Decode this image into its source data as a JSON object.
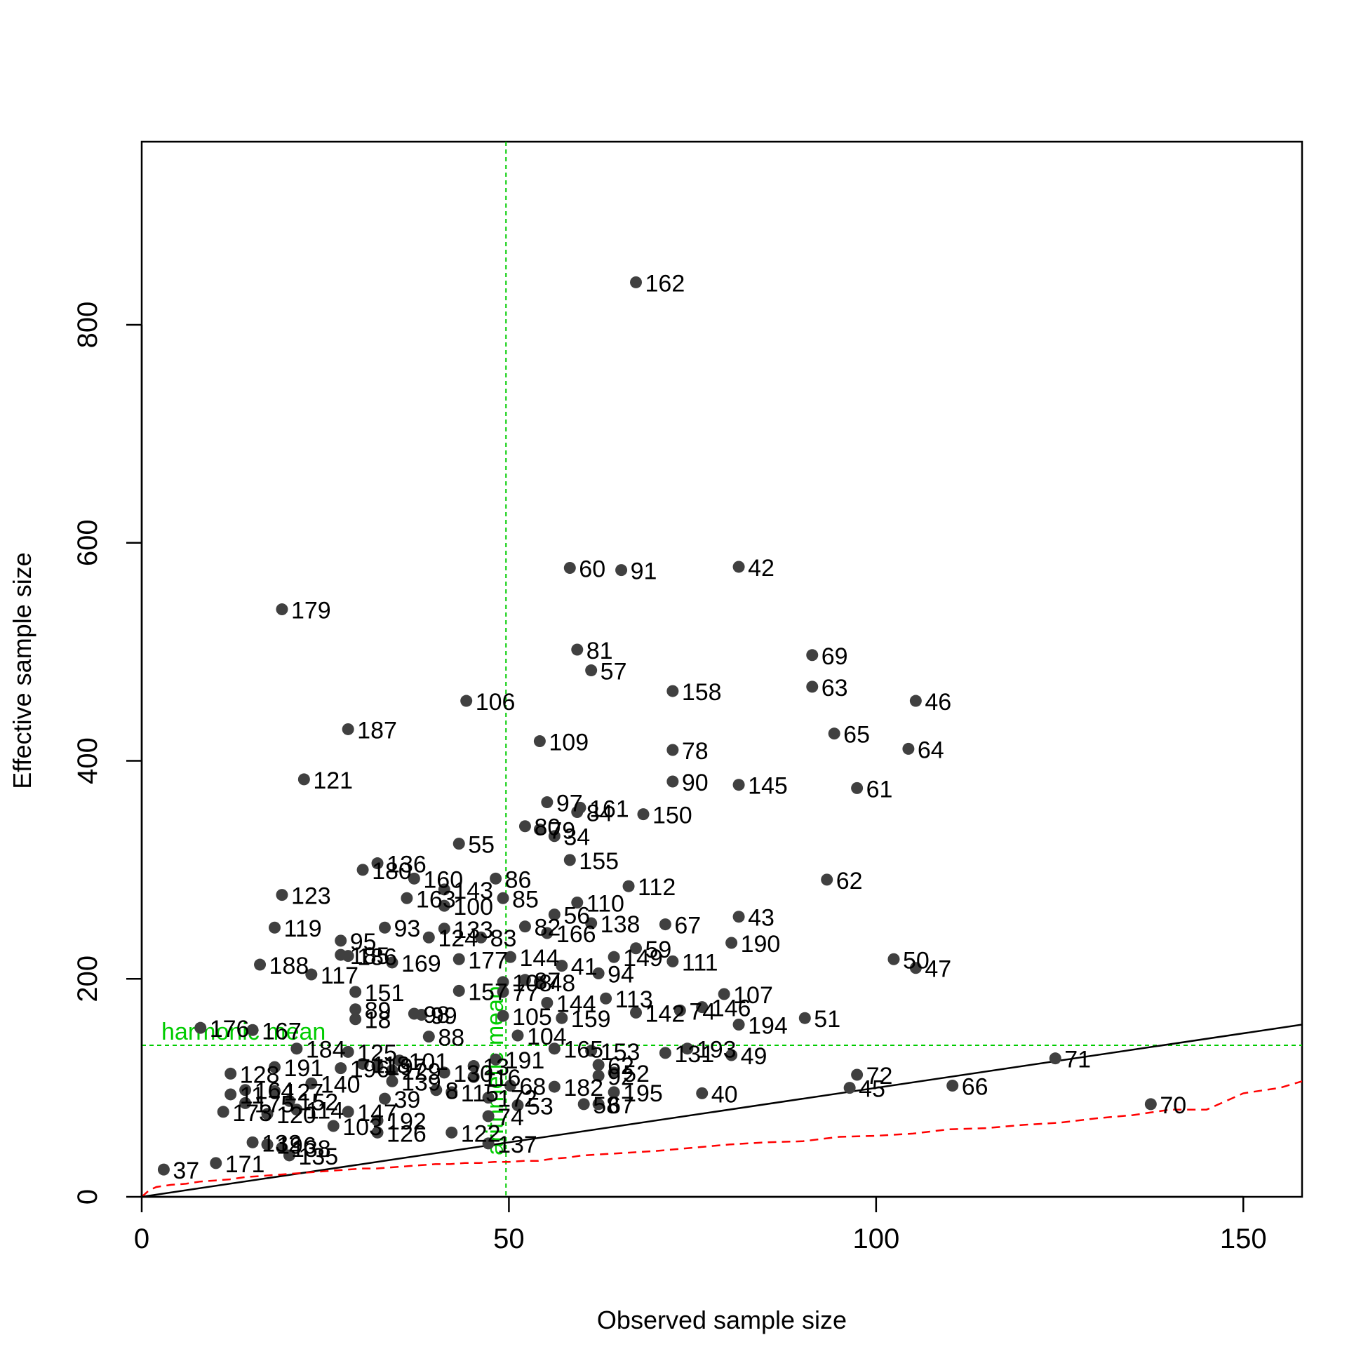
{
  "chart_data": {
    "type": "scatter",
    "title": "",
    "xlabel": "Observed sample size",
    "ylabel": "Effective sample size",
    "xlim": [
      0,
      158
    ],
    "ylim": [
      0,
      968
    ],
    "xticks": [
      "0",
      "50",
      "100",
      "150"
    ],
    "yticks": [
      "0",
      "200",
      "400",
      "600",
      "800"
    ],
    "point_color": "#404040",
    "grid": false,
    "reference_lines": {
      "harmonic_mean": {
        "label": "harmonic mean",
        "value": 139,
        "orientation": "horizontal",
        "color": "#00cc00"
      },
      "arithmetic_mean": {
        "label": "arithmetic mean",
        "value": 49.6,
        "orientation": "vertical",
        "color": "#00cc00"
      }
    },
    "identity_line": {
      "x": [
        0,
        158
      ],
      "y": [
        0,
        158
      ],
      "color": "#000000"
    },
    "lower_curve": {
      "color": "#ff0000",
      "x": [
        0,
        1,
        2,
        4,
        6,
        8,
        10,
        12,
        14,
        16,
        18,
        20,
        22,
        24,
        26,
        28,
        30,
        32,
        34,
        36,
        38,
        40,
        42,
        44,
        46,
        48,
        50,
        52,
        54,
        56,
        58,
        60,
        65,
        70,
        75,
        80,
        85,
        90,
        95,
        100,
        105,
        110,
        115,
        120,
        125,
        130,
        135,
        140,
        145,
        150,
        155,
        158
      ],
      "y": [
        0,
        6,
        9,
        11,
        12,
        14,
        15,
        16,
        18,
        19,
        20,
        21,
        22,
        23,
        24,
        25,
        26,
        26,
        27,
        28,
        29,
        30,
        30,
        31,
        31,
        32,
        32,
        33,
        33,
        35,
        36,
        38,
        40,
        42,
        45,
        48,
        50,
        51,
        55,
        56,
        58,
        62,
        63,
        66,
        68,
        72,
        75,
        80,
        80,
        95,
        100,
        106
      ]
    },
    "points": [
      {
        "id": "162",
        "x": 67.3,
        "y": 839
      },
      {
        "id": "60",
        "x": 58.3,
        "y": 577
      },
      {
        "id": "91",
        "x": 65.3,
        "y": 575
      },
      {
        "id": "42",
        "x": 81.3,
        "y": 578
      },
      {
        "id": "179",
        "x": 19.1,
        "y": 539
      },
      {
        "id": "81",
        "x": 59.3,
        "y": 502
      },
      {
        "id": "57",
        "x": 61.2,
        "y": 483
      },
      {
        "id": "69",
        "x": 91.3,
        "y": 497
      },
      {
        "id": "63",
        "x": 91.3,
        "y": 468
      },
      {
        "id": "106",
        "x": 44.2,
        "y": 455
      },
      {
        "id": "158",
        "x": 72.3,
        "y": 464
      },
      {
        "id": "46",
        "x": 105.4,
        "y": 455
      },
      {
        "id": "187",
        "x": 28.1,
        "y": 429
      },
      {
        "id": "109",
        "x": 54.2,
        "y": 418
      },
      {
        "id": "78",
        "x": 72.3,
        "y": 410
      },
      {
        "id": "65",
        "x": 94.3,
        "y": 425
      },
      {
        "id": "64",
        "x": 104.4,
        "y": 411
      },
      {
        "id": "121",
        "x": 22.1,
        "y": 383
      },
      {
        "id": "90",
        "x": 72.3,
        "y": 381
      },
      {
        "id": "145",
        "x": 81.3,
        "y": 378
      },
      {
        "id": "61",
        "x": 97.4,
        "y": 375
      },
      {
        "id": "97",
        "x": 55.2,
        "y": 362
      },
      {
        "id": "161",
        "x": 59.7,
        "y": 357
      },
      {
        "id": "84",
        "x": 59.3,
        "y": 353
      },
      {
        "id": "150",
        "x": 68.3,
        "y": 351
      },
      {
        "id": "80",
        "x": 52.2,
        "y": 340
      },
      {
        "id": "79",
        "x": 54.2,
        "y": 337
      },
      {
        "id": "34",
        "x": 56.2,
        "y": 331
      },
      {
        "id": "55",
        "x": 43.2,
        "y": 324
      },
      {
        "id": "155",
        "x": 58.3,
        "y": 309
      },
      {
        "id": "136",
        "x": 32.1,
        "y": 306
      },
      {
        "id": "180",
        "x": 30.1,
        "y": 300
      },
      {
        "id": "160",
        "x": 37.1,
        "y": 292
      },
      {
        "id": "86",
        "x": 48.2,
        "y": 292
      },
      {
        "id": "62",
        "x": 93.3,
        "y": 291
      },
      {
        "id": "112",
        "x": 66.3,
        "y": 285
      },
      {
        "id": "143",
        "x": 41.2,
        "y": 282
      },
      {
        "id": "123",
        "x": 19.1,
        "y": 277
      },
      {
        "id": "163",
        "x": 36.1,
        "y": 274
      },
      {
        "id": "85",
        "x": 49.2,
        "y": 274
      },
      {
        "id": "110",
        "x": 59.3,
        "y": 270
      },
      {
        "id": "100",
        "x": 41.2,
        "y": 267
      },
      {
        "id": "43",
        "x": 81.3,
        "y": 257
      },
      {
        "id": "56",
        "x": 56.2,
        "y": 259
      },
      {
        "id": "138",
        "x": 61.2,
        "y": 251
      },
      {
        "id": "67",
        "x": 71.3,
        "y": 250
      },
      {
        "id": "82",
        "x": 52.2,
        "y": 248
      },
      {
        "id": "119",
        "x": 18.1,
        "y": 247
      },
      {
        "id": "93",
        "x": 33.1,
        "y": 247
      },
      {
        "id": "133",
        "x": 41.2,
        "y": 246
      },
      {
        "id": "166",
        "x": 55.2,
        "y": 242
      },
      {
        "id": "124",
        "x": 39.1,
        "y": 238
      },
      {
        "id": "83",
        "x": 46.2,
        "y": 238
      },
      {
        "id": "95",
        "x": 27.1,
        "y": 235
      },
      {
        "id": "190",
        "x": 80.3,
        "y": 233
      },
      {
        "id": "59",
        "x": 67.3,
        "y": 228
      },
      {
        "id": "185",
        "x": 27.1,
        "y": 222
      },
      {
        "id": "186",
        "x": 28.1,
        "y": 221
      },
      {
        "id": "177",
        "x": 43.2,
        "y": 218
      },
      {
        "id": "144",
        "x": 50.2,
        "y": 220
      },
      {
        "id": "149",
        "x": 64.3,
        "y": 220
      },
      {
        "id": "111",
        "x": 72.3,
        "y": 216
      },
      {
        "id": "50",
        "x": 102.4,
        "y": 218
      },
      {
        "id": "169",
        "x": 34.1,
        "y": 215
      },
      {
        "id": "188",
        "x": 16.1,
        "y": 213
      },
      {
        "id": "41",
        "x": 57.2,
        "y": 212
      },
      {
        "id": "47",
        "x": 105.4,
        "y": 210
      },
      {
        "id": "117",
        "x": 23.1,
        "y": 204
      },
      {
        "id": "94",
        "x": 62.2,
        "y": 205
      },
      {
        "id": "108",
        "x": 49.2,
        "y": 197
      },
      {
        "id": "87",
        "x": 52.2,
        "y": 199
      },
      {
        "id": "48",
        "x": 54.2,
        "y": 197
      },
      {
        "id": "151",
        "x": 29.1,
        "y": 188
      },
      {
        "id": "157",
        "x": 43.2,
        "y": 189
      },
      {
        "id": "77",
        "x": 49.2,
        "y": 188
      },
      {
        "id": "107",
        "x": 79.3,
        "y": 186
      },
      {
        "id": "89",
        "x": 29.1,
        "y": 172
      },
      {
        "id": "144b",
        "x": 55.2,
        "y": 178
      },
      {
        "id": "113",
        "x": 63.2,
        "y": 182
      },
      {
        "id": "146",
        "x": 76.3,
        "y": 174
      },
      {
        "id": "74",
        "x": 73.3,
        "y": 171
      },
      {
        "id": "142",
        "x": 67.3,
        "y": 169
      },
      {
        "id": "98",
        "x": 37.1,
        "y": 168
      },
      {
        "id": "99",
        "x": 38.1,
        "y": 167
      },
      {
        "id": "105",
        "x": 49.2,
        "y": 166
      },
      {
        "id": "159",
        "x": 57.2,
        "y": 164
      },
      {
        "id": "51",
        "x": 90.3,
        "y": 164
      },
      {
        "id": "18",
        "x": 29.1,
        "y": 163
      },
      {
        "id": "194",
        "x": 81.3,
        "y": 158
      },
      {
        "id": "176",
        "x": 8.0,
        "y": 155
      },
      {
        "id": "167",
        "x": 15.1,
        "y": 153
      },
      {
        "id": "88",
        "x": 39.1,
        "y": 147
      },
      {
        "id": "104",
        "x": 51.2,
        "y": 148
      },
      {
        "id": "184",
        "x": 21.1,
        "y": 136
      },
      {
        "id": "165",
        "x": 56.2,
        "y": 136
      },
      {
        "id": "153",
        "x": 61.2,
        "y": 134
      },
      {
        "id": "193",
        "x": 74.3,
        "y": 136
      },
      {
        "id": "125",
        "x": 28.1,
        "y": 133
      },
      {
        "id": "131",
        "x": 71.3,
        "y": 132
      },
      {
        "id": "49",
        "x": 80.3,
        "y": 130
      },
      {
        "id": "71",
        "x": 124.4,
        "y": 127
      },
      {
        "id": "191",
        "x": 48.2,
        "y": 126
      },
      {
        "id": "101",
        "x": 35.1,
        "y": 125
      },
      {
        "id": "118",
        "x": 30.1,
        "y": 122
      },
      {
        "id": "62b",
        "x": 62.2,
        "y": 121
      },
      {
        "id": "13",
        "x": 45.2,
        "y": 120
      },
      {
        "id": "191b",
        "x": 18.1,
        "y": 119
      },
      {
        "id": "196",
        "x": 27.1,
        "y": 118
      },
      {
        "id": "197",
        "x": 32.1,
        "y": 120
      },
      {
        "id": "129",
        "x": 34.1,
        "y": 116
      },
      {
        "id": "128",
        "x": 12.1,
        "y": 113
      },
      {
        "id": "52",
        "x": 64.3,
        "y": 114
      },
      {
        "id": "72",
        "x": 97.4,
        "y": 112
      },
      {
        "id": "130",
        "x": 41.2,
        "y": 114
      },
      {
        "id": "92",
        "x": 62.2,
        "y": 111
      },
      {
        "id": "116",
        "x": 45.2,
        "y": 110
      },
      {
        "id": "139",
        "x": 34.1,
        "y": 106
      },
      {
        "id": "140",
        "x": 23.1,
        "y": 104
      },
      {
        "id": "66",
        "x": 110.4,
        "y": 102
      },
      {
        "id": "68",
        "x": 50.2,
        "y": 102
      },
      {
        "id": "182",
        "x": 56.2,
        "y": 101
      },
      {
        "id": "45",
        "x": 96.4,
        "y": 100
      },
      {
        "id": "8",
        "x": 40.1,
        "y": 98
      },
      {
        "id": "164",
        "x": 14.1,
        "y": 98
      },
      {
        "id": "127",
        "x": 18.1,
        "y": 97
      },
      {
        "id": "115",
        "x": 42.2,
        "y": 96
      },
      {
        "id": "195",
        "x": 64.3,
        "y": 96
      },
      {
        "id": "40",
        "x": 76.3,
        "y": 95
      },
      {
        "id": "11",
        "x": 12.1,
        "y": 94
      },
      {
        "id": "172",
        "x": 47.2,
        "y": 91
      },
      {
        "id": "39",
        "x": 33.1,
        "y": 90
      },
      {
        "id": "152",
        "x": 20.1,
        "y": 88
      },
      {
        "id": "175",
        "x": 14.1,
        "y": 86
      },
      {
        "id": "70",
        "x": 137.4,
        "y": 85
      },
      {
        "id": "58",
        "x": 60.2,
        "y": 85
      },
      {
        "id": "67b",
        "x": 62.2,
        "y": 85
      },
      {
        "id": "53",
        "x": 51.2,
        "y": 84
      },
      {
        "id": "114",
        "x": 21.1,
        "y": 80
      },
      {
        "id": "147",
        "x": 28.1,
        "y": 78
      },
      {
        "id": "173",
        "x": 11.1,
        "y": 78
      },
      {
        "id": "120",
        "x": 17.1,
        "y": 76
      },
      {
        "id": "74b",
        "x": 47.2,
        "y": 74
      },
      {
        "id": "192",
        "x": 32.1,
        "y": 70
      },
      {
        "id": "103",
        "x": 26.1,
        "y": 65
      },
      {
        "id": "126",
        "x": 32.1,
        "y": 59
      },
      {
        "id": "122",
        "x": 42.2,
        "y": 59
      },
      {
        "id": "132",
        "x": 15.1,
        "y": 50
      },
      {
        "id": "137",
        "x": 47.2,
        "y": 49
      },
      {
        "id": "196b",
        "x": 17.1,
        "y": 48
      },
      {
        "id": "138b",
        "x": 19.1,
        "y": 45
      },
      {
        "id": "135",
        "x": 20.1,
        "y": 38
      },
      {
        "id": "171",
        "x": 10.1,
        "y": 31
      },
      {
        "id": "37",
        "x": 3.0,
        "y": 25
      }
    ],
    "point_labels": {
      "144b": "144",
      "62b": "62",
      "191b": "191",
      "67b": "67",
      "74b": "74",
      "196b": "196",
      "138b": "138"
    }
  }
}
